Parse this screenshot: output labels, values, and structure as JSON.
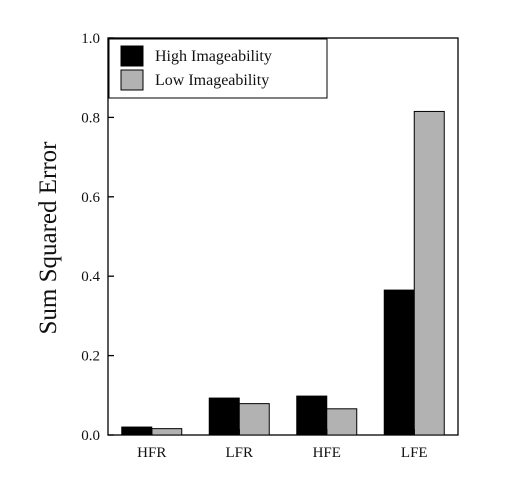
{
  "chart_data": {
    "type": "bar",
    "title": "",
    "xlabel": "",
    "ylabel": "Sum Squared Error",
    "ylim": [
      0,
      1.0
    ],
    "yticks": [
      "0.0",
      "0.2",
      "0.4",
      "0.6",
      "0.8",
      "1.0"
    ],
    "grid": false,
    "legend_position": "top-left",
    "categories": [
      "HFR",
      "LFR",
      "HFE",
      "LFE"
    ],
    "series": [
      {
        "name": "High Imageability",
        "color": "#000000",
        "values": [
          0.02,
          0.093,
          0.098,
          0.365
        ]
      },
      {
        "name": "Low Imageability",
        "color": "#b2b2b2",
        "values": [
          0.016,
          0.079,
          0.066,
          0.815
        ]
      }
    ]
  }
}
